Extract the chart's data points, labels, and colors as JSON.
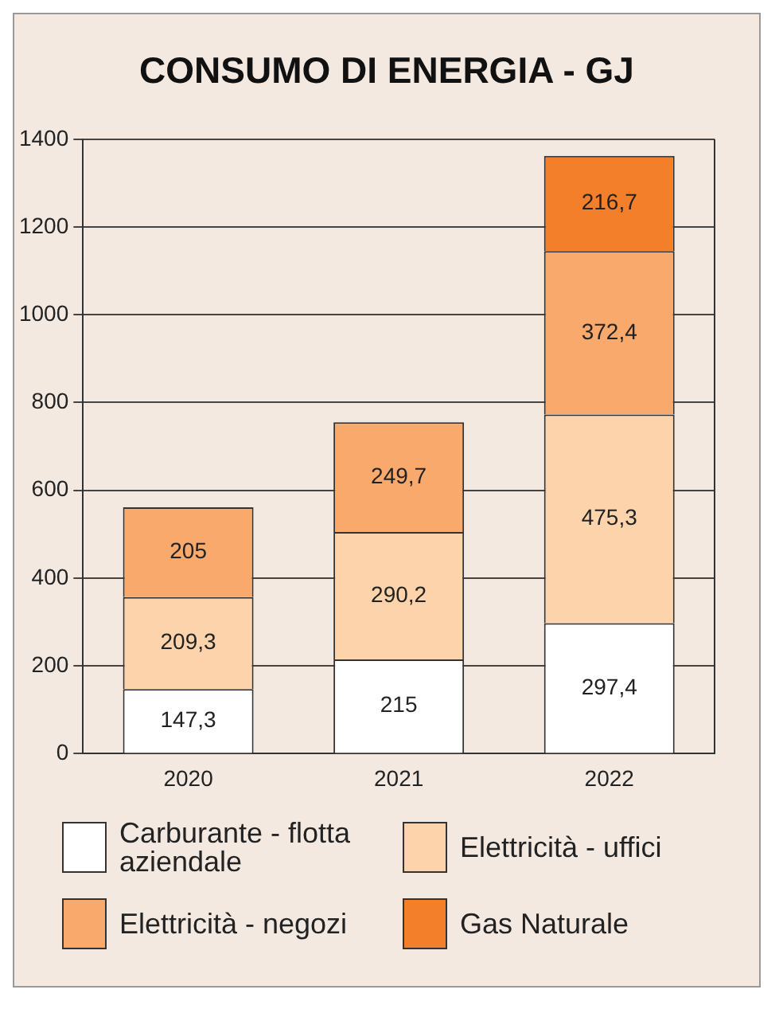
{
  "chart_data": {
    "type": "bar",
    "title": "CONSUMO DI ENERGIA - GJ",
    "categories": [
      "2020",
      "2021",
      "2022"
    ],
    "stacked": true,
    "ylim": [
      0,
      1400
    ],
    "yticks": [
      0,
      200,
      400,
      600,
      800,
      1000,
      1200,
      1400
    ],
    "grid": "y",
    "legend": "bottom",
    "series": [
      {
        "name": "Carburante - flotta aziendale",
        "color": "#ffffff",
        "values": [
          147.3,
          215,
          297.4
        ],
        "value_labels": [
          "147,3",
          "215",
          "297,4"
        ]
      },
      {
        "name": "Elettricità - uffici",
        "color": "#fdd3ab",
        "values": [
          209.3,
          290.2,
          475.3
        ],
        "value_labels": [
          "209,3",
          "290,2",
          "475,3"
        ]
      },
      {
        "name": "Elettricità - negozi",
        "color": "#f8a96b",
        "values": [
          205,
          249.7,
          372.4
        ],
        "value_labels": [
          "205",
          "249,7",
          "372,4"
        ]
      },
      {
        "name": "Gas Naturale",
        "color": "#f47f2a",
        "values": [
          null,
          null,
          216.7
        ],
        "value_labels": [
          null,
          null,
          "216,7"
        ]
      }
    ]
  }
}
